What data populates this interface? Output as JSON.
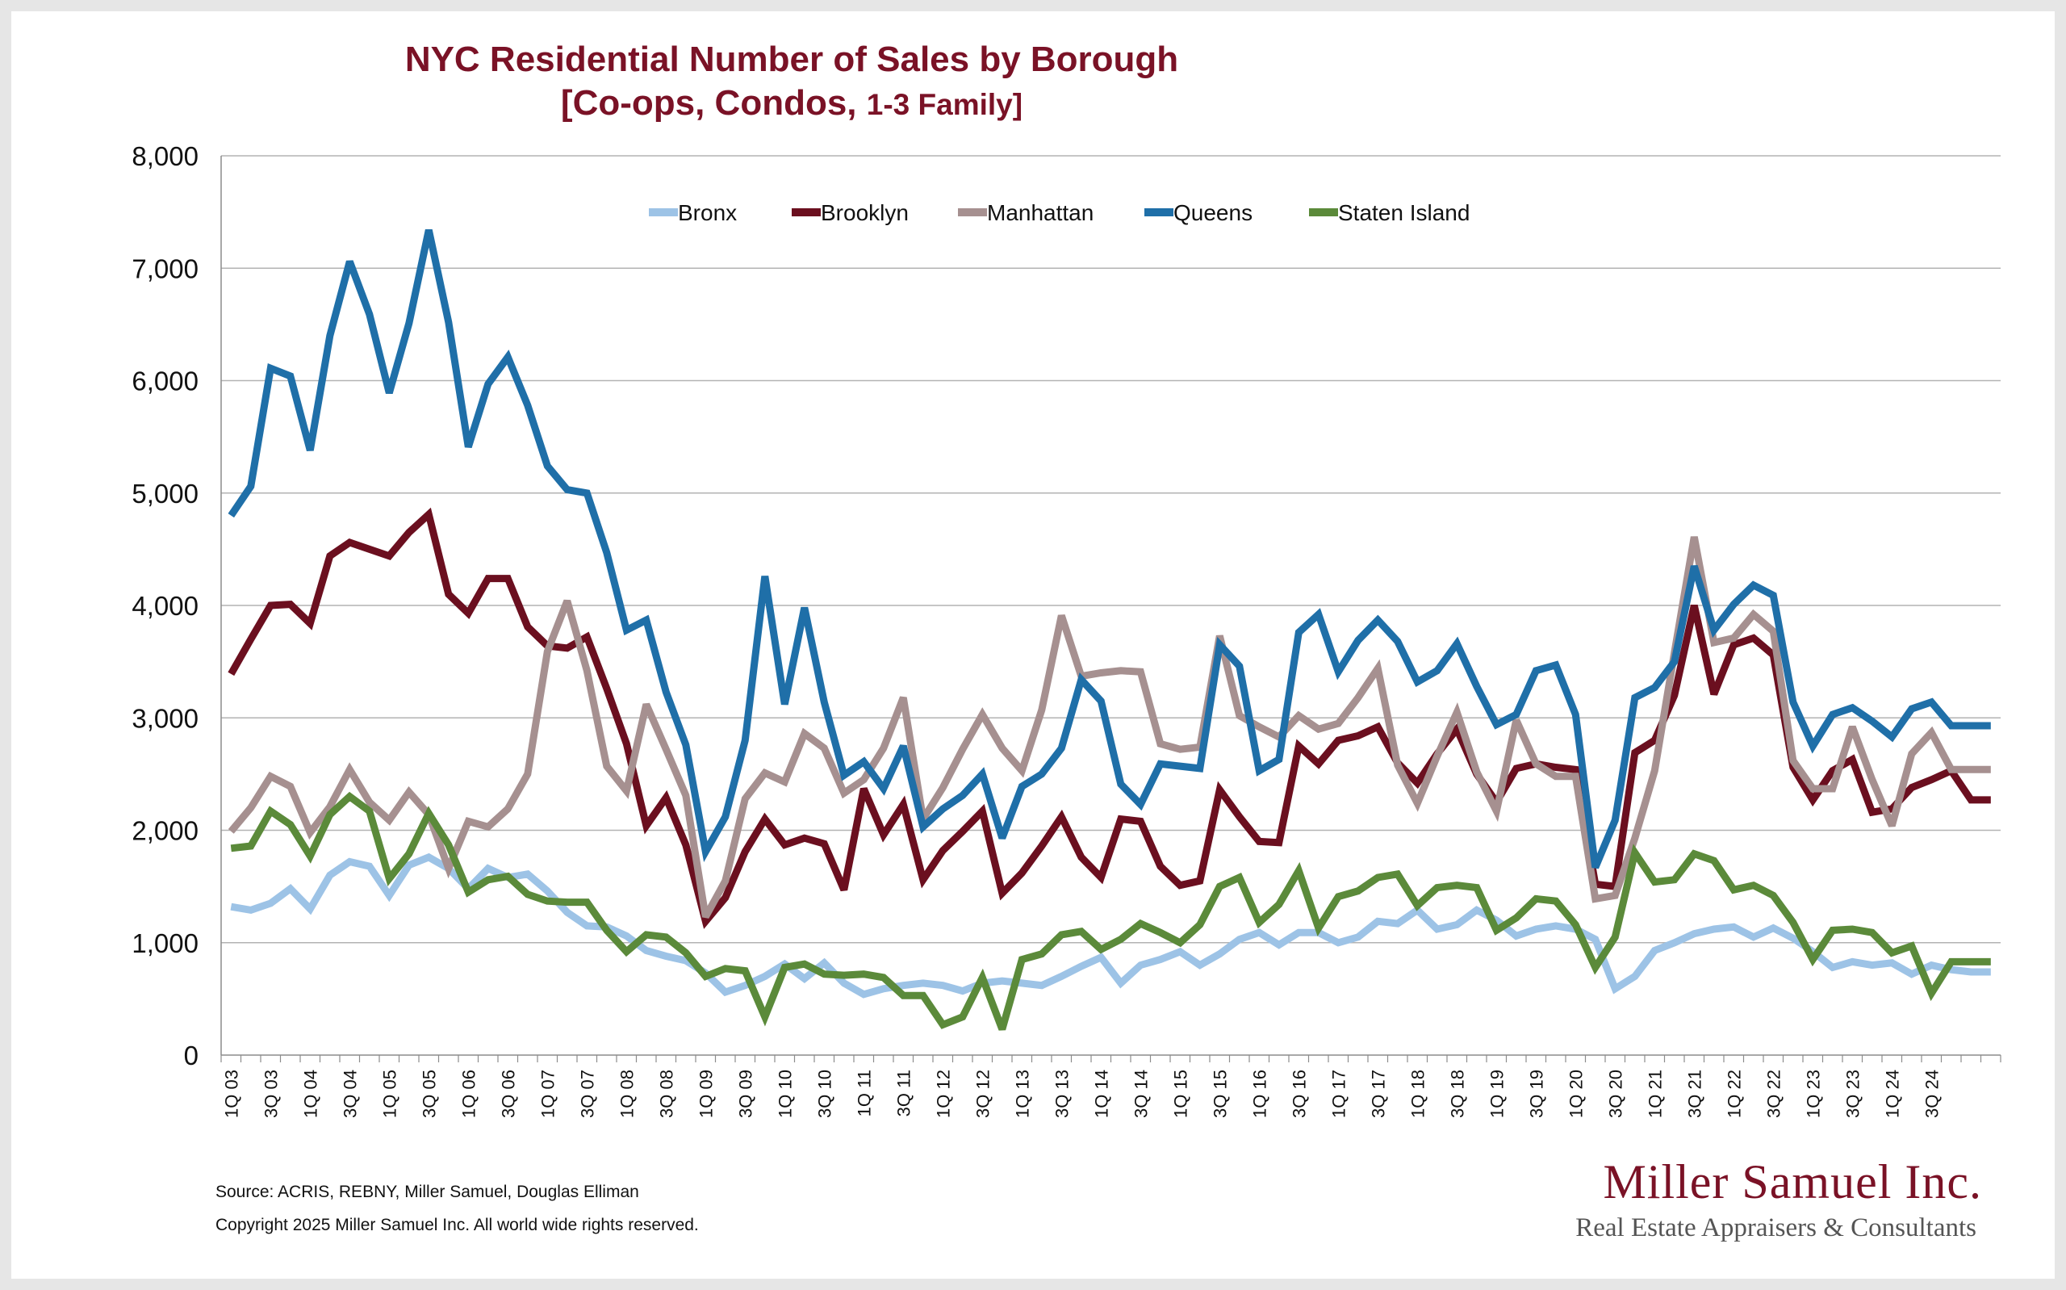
{
  "chart_data": {
    "type": "line",
    "title": "NYC Residential Number of Sales by Borough",
    "subtitle_prefix": "[Co-ops, Condos, ",
    "subtitle_suffix": "1-3 Family]",
    "ylim": [
      0,
      8000
    ],
    "yticks": [
      0,
      1000,
      2000,
      3000,
      4000,
      5000,
      6000,
      7000,
      8000
    ],
    "ytick_labels": [
      "0",
      "1,000",
      "2,000",
      "3,000",
      "4,000",
      "5,000",
      "6,000",
      "7,000",
      "8,000"
    ],
    "x_tick_labels": [
      "1Q 03",
      "3Q 03",
      "1Q 04",
      "3Q 04",
      "1Q 05",
      "3Q 05",
      "1Q 06",
      "3Q 06",
      "1Q 07",
      "3Q 07",
      "1Q 08",
      "3Q 08",
      "1Q 09",
      "3Q 09",
      "1Q 10",
      "3Q 10",
      "1Q 11",
      "3Q 11",
      "1Q 12",
      "3Q 12",
      "1Q 13",
      "3Q 13",
      "1Q 14",
      "3Q 14",
      "1Q 15",
      "3Q 15",
      "1Q 16",
      "3Q 16",
      "1Q 17",
      "3Q 17",
      "1Q 18",
      "3Q 18",
      "1Q 19",
      "3Q 19",
      "1Q 20",
      "3Q 20",
      "1Q 21",
      "3Q 21",
      "1Q 22",
      "3Q 22",
      "1Q 23",
      "3Q 23",
      "1Q 24",
      "3Q 24"
    ],
    "grid": true,
    "legend_position": "top-center",
    "series": [
      {
        "name": "Bronx",
        "color": "#9dc3e6",
        "values": [
          1320,
          1290,
          1350,
          1480,
          1300,
          1600,
          1720,
          1680,
          1420,
          1690,
          1760,
          1660,
          1480,
          1660,
          1580,
          1610,
          1460,
          1270,
          1150,
          1140,
          1060,
          930,
          880,
          840,
          730,
          560,
          620,
          700,
          810,
          680,
          820,
          640,
          540,
          590,
          620,
          640,
          620,
          570,
          640,
          660,
          640,
          620,
          700,
          790,
          870,
          640,
          800,
          850,
          920,
          800,
          900,
          1030,
          1090,
          980,
          1090,
          1090,
          1000,
          1050,
          1190,
          1170,
          1290,
          1120,
          1160,
          1290,
          1200,
          1060,
          1120,
          1150,
          1120,
          1030,
          590,
          700,
          930,
          1000,
          1080,
          1120,
          1140,
          1050,
          1130,
          1040,
          920,
          780,
          830,
          800,
          820,
          720,
          800,
          760,
          740,
          740
        ]
      },
      {
        "name": "Brooklyn",
        "color": "#6b0f1f",
        "values": [
          3390,
          3700,
          4000,
          4010,
          3840,
          4440,
          4560,
          4500,
          4440,
          4650,
          4810,
          4100,
          3930,
          4240,
          4240,
          3810,
          3640,
          3620,
          3720,
          3260,
          2770,
          2040,
          2290,
          1870,
          1190,
          1400,
          1810,
          2100,
          1870,
          1930,
          1880,
          1470,
          2370,
          1960,
          2230,
          1560,
          1820,
          1990,
          2170,
          1440,
          1620,
          1860,
          2120,
          1760,
          1580,
          2100,
          2080,
          1680,
          1510,
          1550,
          2360,
          2120,
          1900,
          1890,
          2750,
          2590,
          2800,
          2840,
          2920,
          2600,
          2420,
          2680,
          2900,
          2500,
          2250,
          2550,
          2590,
          2560,
          2540,
          1520,
          1500,
          2690,
          2800,
          3200,
          4000,
          3210,
          3650,
          3710,
          3560,
          2560,
          2270,
          2530,
          2630,
          2160,
          2190,
          2380,
          2450,
          2530,
          2270,
          2270
        ]
      },
      {
        "name": "Manhattan",
        "color": "#a69090",
        "values": [
          1990,
          2200,
          2480,
          2390,
          1980,
          2210,
          2540,
          2250,
          2090,
          2340,
          2140,
          1660,
          2080,
          2030,
          2190,
          2500,
          3590,
          4040,
          3420,
          2570,
          2350,
          3120,
          2720,
          2310,
          1230,
          1550,
          2280,
          2510,
          2430,
          2860,
          2730,
          2330,
          2450,
          2730,
          3180,
          2100,
          2380,
          2720,
          3030,
          2730,
          2530,
          3070,
          3910,
          3370,
          3400,
          3420,
          3410,
          2770,
          2720,
          2740,
          3730,
          3020,
          2920,
          2830,
          3020,
          2900,
          2950,
          3180,
          3440,
          2580,
          2240,
          2660,
          3050,
          2520,
          2170,
          2980,
          2590,
          2480,
          2480,
          1390,
          1420,
          1930,
          2530,
          3580,
          4610,
          3670,
          3710,
          3920,
          3770,
          2620,
          2370,
          2370,
          2920,
          2450,
          2040,
          2680,
          2870,
          2540,
          2540,
          2540
        ]
      },
      {
        "name": "Queens",
        "color": "#1f6fa8",
        "values": [
          4800,
          5060,
          6110,
          6040,
          5380,
          6400,
          7060,
          6590,
          5890,
          6510,
          7340,
          6520,
          5410,
          5970,
          6210,
          5780,
          5240,
          5030,
          5000,
          4470,
          3780,
          3870,
          3230,
          2760,
          1810,
          2120,
          2800,
          4260,
          3120,
          3980,
          3140,
          2490,
          2610,
          2370,
          2750,
          2030,
          2190,
          2310,
          2500,
          1930,
          2390,
          2500,
          2730,
          3340,
          3150,
          2410,
          2230,
          2590,
          2570,
          2550,
          3650,
          3460,
          2530,
          2630,
          3760,
          3920,
          3410,
          3690,
          3870,
          3680,
          3320,
          3420,
          3660,
          3280,
          2940,
          3030,
          3420,
          3470,
          3030,
          1670,
          2090,
          3180,
          3270,
          3500,
          4350,
          3780,
          4010,
          4180,
          4090,
          3140,
          2750,
          3030,
          3090,
          2970,
          2830,
          3080,
          3140,
          2930,
          2930,
          2930
        ]
      },
      {
        "name": "Staten Island",
        "color": "#5b8a3a",
        "values": [
          1840,
          1860,
          2170,
          2050,
          1770,
          2140,
          2300,
          2170,
          1570,
          1790,
          2150,
          1870,
          1450,
          1560,
          1590,
          1430,
          1370,
          1360,
          1360,
          1110,
          920,
          1070,
          1050,
          910,
          700,
          770,
          750,
          340,
          780,
          810,
          720,
          710,
          720,
          690,
          530,
          530,
          270,
          340,
          690,
          230,
          850,
          900,
          1070,
          1100,
          940,
          1030,
          1170,
          1090,
          1000,
          1160,
          1500,
          1580,
          1180,
          1340,
          1640,
          1130,
          1410,
          1460,
          1580,
          1610,
          1330,
          1490,
          1510,
          1490,
          1110,
          1220,
          1390,
          1370,
          1160,
          780,
          1050,
          1800,
          1540,
          1560,
          1790,
          1730,
          1470,
          1510,
          1420,
          1180,
          850,
          1110,
          1120,
          1090,
          910,
          970,
          550,
          830,
          830,
          830
        ]
      }
    ]
  },
  "footer": {
    "source": "Source: ACRIS, REBNY, Miller Samuel, Douglas Elliman",
    "copyright": "Copyright 2025 Miller Samuel Inc.  All world wide rights reserved."
  },
  "brand": {
    "name": "Miller Samuel Inc.",
    "tagline": "Real Estate Appraisers & Consultants"
  }
}
